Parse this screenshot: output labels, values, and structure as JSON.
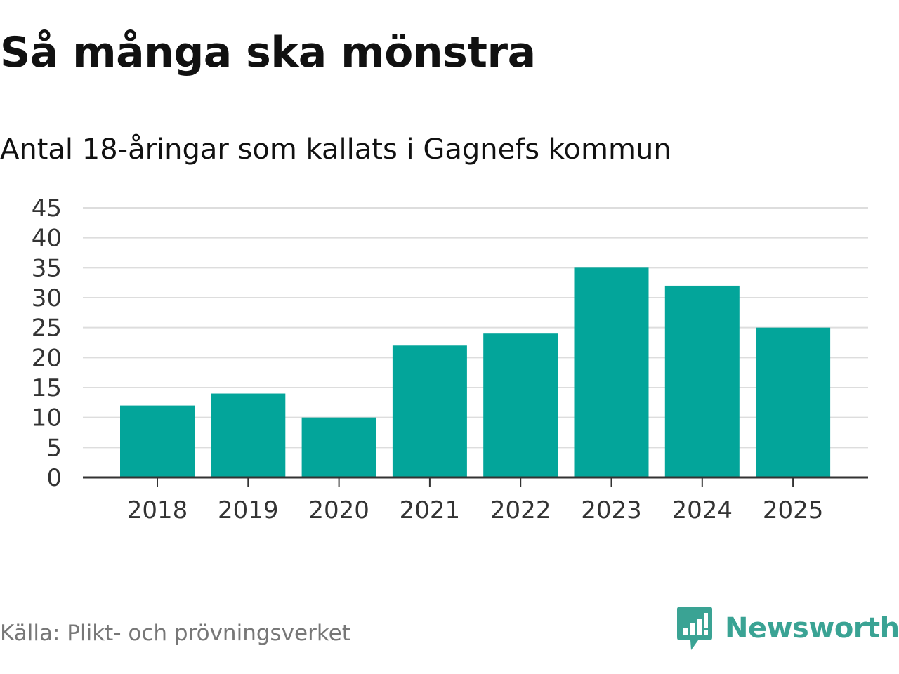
{
  "header": {
    "title": "Så många ska mönstra",
    "subtitle": "Antal 18-åringar som kallats i Gagnefs kommun"
  },
  "footer": {
    "source": "Källa: Plikt- och prövningsverket",
    "brand": "Newsworthy",
    "brand_icon": "newsworthy-logo-icon"
  },
  "colors": {
    "bar": "#03a59a",
    "grid": "#dddddd",
    "axis": "#333333",
    "brand": "#3aa394"
  },
  "chart_data": {
    "type": "bar",
    "title": "Så många ska mönstra",
    "subtitle": "Antal 18-åringar som kallats i Gagnefs kommun",
    "xlabel": "",
    "ylabel": "",
    "categories": [
      "2018",
      "2019",
      "2020",
      "2021",
      "2022",
      "2023",
      "2024",
      "2025"
    ],
    "values": [
      12,
      14,
      10,
      22,
      24,
      35,
      32,
      25
    ],
    "ylim": [
      0,
      45
    ],
    "yticks": [
      0,
      5,
      10,
      15,
      20,
      25,
      30,
      35,
      40,
      45
    ],
    "grid": true,
    "legend": "none"
  }
}
